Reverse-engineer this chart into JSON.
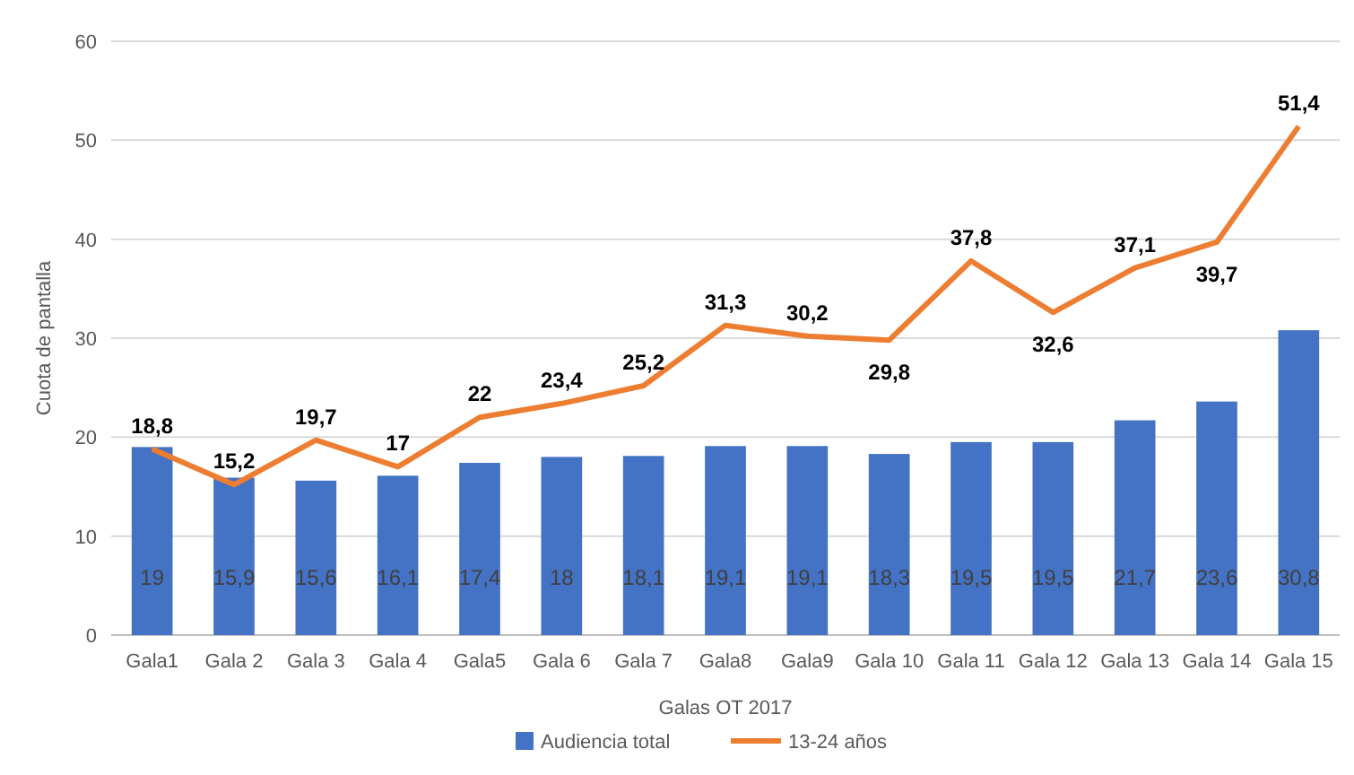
{
  "chart_data": {
    "type": "bar",
    "xlabel": "Galas OT 2017",
    "ylabel": "Cuota de pantalla",
    "categories": [
      "Gala1",
      "Gala 2",
      "Gala 3",
      "Gala 4",
      "Gala5",
      "Gala 6",
      "Gala 7",
      "Gala8",
      "Gala9",
      "Gala 10",
      "Gala 11",
      "Gala 12",
      "Gala 13",
      "Gala 14",
      "Gala 15"
    ],
    "series": [
      {
        "name": "Audiencia total",
        "color": "#4472c4",
        "values": [
          19,
          15.9,
          15.6,
          16.1,
          17.4,
          18,
          18.1,
          19.1,
          19.1,
          18.3,
          19.5,
          19.5,
          21.7,
          23.6,
          30.8
        ],
        "value_labels": [
          "19",
          "15,9",
          "15,6",
          "16,1",
          "17,4",
          "18",
          "18,1",
          "19,1",
          "19,1",
          "18,3",
          "19,5",
          "19,5",
          "21,7",
          "23,6",
          "30,8"
        ]
      },
      {
        "name": "13-24 años",
        "type": "line",
        "color": "#ed7d31",
        "values": [
          18.8,
          15.2,
          19.7,
          17,
          22,
          23.4,
          25.2,
          31.3,
          30.2,
          29.8,
          37.8,
          32.6,
          37.1,
          39.7,
          51.4
        ],
        "value_labels": [
          "18,8",
          "15,2",
          "19,7",
          "17",
          "22",
          "23,4",
          "25,2",
          "31,3",
          "30,2",
          "29,8",
          "37,8",
          "32,6",
          "37,1",
          "39,7",
          "51,4"
        ]
      }
    ],
    "ylim": [
      0,
      60
    ],
    "yticks": [
      0,
      10,
      20,
      30,
      40,
      50,
      60
    ],
    "grid": "y",
    "legend": "bottom"
  }
}
